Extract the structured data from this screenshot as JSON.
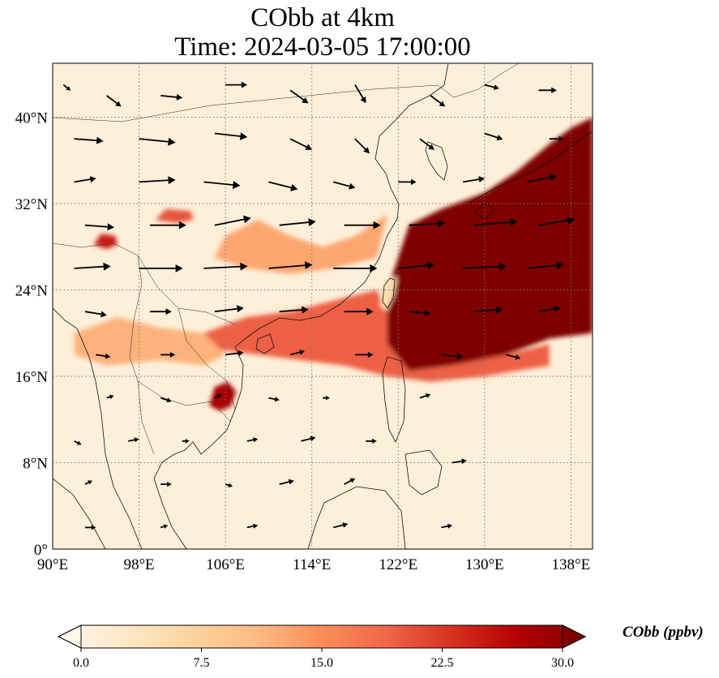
{
  "title": {
    "line1": "CObb at 4km",
    "line2": "Time: 2024-03-05 17:00:00"
  },
  "map": {
    "extent": {
      "lon_min": 90,
      "lon_max": 140,
      "lat_min": 0,
      "lat_max": 45
    },
    "lon_ticks": [
      {
        "value": 90,
        "label": "90°E"
      },
      {
        "value": 98,
        "label": "98°E"
      },
      {
        "value": 106,
        "label": "106°E"
      },
      {
        "value": 114,
        "label": "114°E"
      },
      {
        "value": 122,
        "label": "122°E"
      },
      {
        "value": 130,
        "label": "130°E"
      },
      {
        "value": 138,
        "label": "138°E"
      }
    ],
    "lat_ticks": [
      {
        "value": 0,
        "label": "0°"
      },
      {
        "value": 8,
        "label": "8°N"
      },
      {
        "value": 16,
        "label": "16°N"
      },
      {
        "value": 24,
        "label": "24°N"
      },
      {
        "value": 32,
        "label": "32°N"
      },
      {
        "value": 40,
        "label": "40°N"
      }
    ],
    "gridlines": true
  },
  "colorbar": {
    "label": "CObb (ppbv)",
    "min": 0.0,
    "max": 30.0,
    "ticks": [
      {
        "value": 0,
        "label": "0.0"
      },
      {
        "value": 7.5,
        "label": "7.5"
      },
      {
        "value": 15,
        "label": "15.0"
      },
      {
        "value": 22.5,
        "label": "22.5"
      },
      {
        "value": 30,
        "label": "30.0"
      }
    ],
    "colors": [
      "#fff7ec",
      "#fee8c8",
      "#fdd49e",
      "#fdbb84",
      "#fc8d59",
      "#ef6548",
      "#d7301f",
      "#b30000",
      "#7f0000"
    ],
    "extend": "both"
  },
  "field": {
    "background_value": 2,
    "plumes": [
      {
        "region": "East China Sea to Pacific",
        "value": 30,
        "polygon": [
          [
            121,
            24
          ],
          [
            122,
            27
          ],
          [
            123,
            30
          ],
          [
            126,
            31.5
          ],
          [
            130,
            33
          ],
          [
            133,
            35
          ],
          [
            136,
            37.5
          ],
          [
            138,
            39
          ],
          [
            140,
            40
          ],
          [
            140,
            20
          ],
          [
            136,
            19.5
          ],
          [
            132,
            18
          ],
          [
            127,
            17
          ],
          [
            123,
            16.5
          ],
          [
            121,
            19
          ],
          [
            120.5,
            22
          ]
        ]
      },
      {
        "region": "South China to Philippine Sea band",
        "value": 19,
        "polygon": [
          [
            104,
            20
          ],
          [
            108,
            21.5
          ],
          [
            112,
            22
          ],
          [
            116,
            23
          ],
          [
            120,
            24
          ],
          [
            121,
            22
          ],
          [
            121,
            19
          ],
          [
            123,
            16.5
          ],
          [
            127,
            17
          ],
          [
            132,
            18
          ],
          [
            136,
            19
          ],
          [
            136,
            17
          ],
          [
            130,
            16
          ],
          [
            125,
            15.5
          ],
          [
            121,
            16
          ],
          [
            117,
            17
          ],
          [
            113,
            17.5
          ],
          [
            109,
            18
          ],
          [
            105,
            18.5
          ]
        ]
      },
      {
        "region": "Southern China inland",
        "value": 13,
        "polygon": [
          [
            106,
            29
          ],
          [
            109,
            30.5
          ],
          [
            112,
            29
          ],
          [
            115,
            28
          ],
          [
            118,
            29
          ],
          [
            121,
            31
          ],
          [
            120,
            27
          ],
          [
            116,
            26
          ],
          [
            112,
            25.5
          ],
          [
            108,
            26
          ],
          [
            105,
            27
          ]
        ]
      },
      {
        "region": "Northern Indochina",
        "value": 12,
        "polygon": [
          [
            92,
            20
          ],
          [
            96,
            21.5
          ],
          [
            100,
            20.5
          ],
          [
            104,
            20
          ],
          [
            106,
            18
          ],
          [
            104,
            17
          ],
          [
            100,
            17.5
          ],
          [
            95,
            17
          ],
          [
            92,
            18
          ]
        ]
      },
      {
        "region": "Cambodia hotspot",
        "value": 27,
        "polygon": [
          [
            104.5,
            13.3
          ],
          [
            105,
            15
          ],
          [
            106.2,
            15.5
          ],
          [
            107,
            14.6
          ],
          [
            106.5,
            13.2
          ],
          [
            105.5,
            12.8
          ]
        ]
      },
      {
        "region": "Myanmar hotspot",
        "value": 24,
        "polygon": [
          [
            93.8,
            28.2
          ],
          [
            94.5,
            29.2
          ],
          [
            95.8,
            29
          ],
          [
            96,
            28.2
          ],
          [
            95,
            27.8
          ]
        ]
      },
      {
        "region": "Sichuan hotspot",
        "value": 20,
        "polygon": [
          [
            99.5,
            30.5
          ],
          [
            100.5,
            31.5
          ],
          [
            102.8,
            31.3
          ],
          [
            103,
            30.5
          ],
          [
            101.5,
            30.2
          ]
        ]
      },
      {
        "region": "Taiwan",
        "value": 6,
        "polygon": [
          [
            120.8,
            24.9
          ],
          [
            121.9,
            25.2
          ],
          [
            121.6,
            23.5
          ],
          [
            120.9,
            22
          ],
          [
            120.3,
            22.6
          ]
        ]
      }
    ],
    "winds": [
      {
        "lon": 91,
        "lat": 43,
        "u": 1,
        "v": -0.8
      },
      {
        "lon": 95,
        "lat": 42,
        "u": 2,
        "v": -1.5
      },
      {
        "lon": 100,
        "lat": 42,
        "u": 3,
        "v": -0.3
      },
      {
        "lon": 106,
        "lat": 43,
        "u": 3,
        "v": 0
      },
      {
        "lon": 112,
        "lat": 42.5,
        "u": 2.5,
        "v": -1.8
      },
      {
        "lon": 118,
        "lat": 43,
        "u": 1.5,
        "v": -2.5
      },
      {
        "lon": 125,
        "lat": 42,
        "u": 2,
        "v": -1.5
      },
      {
        "lon": 130,
        "lat": 43,
        "u": 2,
        "v": -0.5
      },
      {
        "lon": 135,
        "lat": 42.5,
        "u": 2.5,
        "v": 0
      },
      {
        "lon": 92,
        "lat": 38,
        "u": 4,
        "v": -0.3
      },
      {
        "lon": 98,
        "lat": 38,
        "u": 5,
        "v": -0.5
      },
      {
        "lon": 105,
        "lat": 38.5,
        "u": 4.5,
        "v": -0.5
      },
      {
        "lon": 112,
        "lat": 38,
        "u": 3,
        "v": -1.5
      },
      {
        "lon": 118,
        "lat": 38,
        "u": 2,
        "v": -2
      },
      {
        "lon": 124,
        "lat": 38,
        "u": 2,
        "v": -1.5
      },
      {
        "lon": 130,
        "lat": 38.5,
        "u": 2.5,
        "v": -0.8
      },
      {
        "lon": 136,
        "lat": 38,
        "u": 2,
        "v": 0
      },
      {
        "lon": 92,
        "lat": 34,
        "u": 3,
        "v": 0.5
      },
      {
        "lon": 98,
        "lat": 34,
        "u": 5,
        "v": 0.3
      },
      {
        "lon": 104,
        "lat": 34,
        "u": 5,
        "v": -0.5
      },
      {
        "lon": 110,
        "lat": 34,
        "u": 4,
        "v": -1
      },
      {
        "lon": 116,
        "lat": 34,
        "u": 3,
        "v": -0.8
      },
      {
        "lon": 122,
        "lat": 34,
        "u": 2.5,
        "v": 0
      },
      {
        "lon": 128,
        "lat": 34,
        "u": 3,
        "v": 0.5
      },
      {
        "lon": 134,
        "lat": 34,
        "u": 4,
        "v": 0.8
      },
      {
        "lon": 93,
        "lat": 30,
        "u": 4,
        "v": -0.3
      },
      {
        "lon": 99,
        "lat": 30,
        "u": 5,
        "v": 0
      },
      {
        "lon": 105,
        "lat": 30,
        "u": 5,
        "v": 1
      },
      {
        "lon": 111,
        "lat": 30,
        "u": 5,
        "v": 0.5
      },
      {
        "lon": 117,
        "lat": 30,
        "u": 5,
        "v": 0
      },
      {
        "lon": 123,
        "lat": 30,
        "u": 5,
        "v": 0.3
      },
      {
        "lon": 129,
        "lat": 30,
        "u": 6,
        "v": 0.5
      },
      {
        "lon": 135,
        "lat": 30,
        "u": 5,
        "v": 0.8
      },
      {
        "lon": 92,
        "lat": 26,
        "u": 5,
        "v": 0.3
      },
      {
        "lon": 98,
        "lat": 26,
        "u": 6,
        "v": 0
      },
      {
        "lon": 104,
        "lat": 26,
        "u": 6,
        "v": 0.3
      },
      {
        "lon": 110,
        "lat": 26,
        "u": 6,
        "v": 0.5
      },
      {
        "lon": 116,
        "lat": 26,
        "u": 6,
        "v": 0
      },
      {
        "lon": 122,
        "lat": 26,
        "u": 5,
        "v": 0.5
      },
      {
        "lon": 128,
        "lat": 26,
        "u": 6,
        "v": 0.3
      },
      {
        "lon": 134,
        "lat": 26,
        "u": 5,
        "v": 0.5
      },
      {
        "lon": 93,
        "lat": 22,
        "u": 3,
        "v": -0.5
      },
      {
        "lon": 99,
        "lat": 22,
        "u": 3,
        "v": 0
      },
      {
        "lon": 105,
        "lat": 22,
        "u": 4,
        "v": 0.5
      },
      {
        "lon": 111,
        "lat": 22,
        "u": 4,
        "v": 0.3
      },
      {
        "lon": 117,
        "lat": 22,
        "u": 4,
        "v": 0
      },
      {
        "lon": 123,
        "lat": 22,
        "u": 3,
        "v": -0.3
      },
      {
        "lon": 129,
        "lat": 22,
        "u": 4,
        "v": 0.3
      },
      {
        "lon": 135,
        "lat": 22,
        "u": 3,
        "v": 0.5
      },
      {
        "lon": 94,
        "lat": 18,
        "u": 2,
        "v": -0.3
      },
      {
        "lon": 100,
        "lat": 18,
        "u": 2,
        "v": 0
      },
      {
        "lon": 106,
        "lat": 18,
        "u": 2.5,
        "v": 0.3
      },
      {
        "lon": 112,
        "lat": 18,
        "u": 2,
        "v": 0.5
      },
      {
        "lon": 118,
        "lat": 18,
        "u": 2.5,
        "v": 0
      },
      {
        "lon": 126,
        "lat": 18,
        "u": 3,
        "v": -0.3
      },
      {
        "lon": 132,
        "lat": 18,
        "u": 2,
        "v": -0.5
      },
      {
        "lon": 95,
        "lat": 14,
        "u": 1,
        "v": 0.3
      },
      {
        "lon": 100,
        "lat": 14,
        "u": 1.5,
        "v": -0.5
      },
      {
        "lon": 105,
        "lat": 14,
        "u": 1,
        "v": 0.5
      },
      {
        "lon": 110,
        "lat": 14,
        "u": 1.5,
        "v": -0.3
      },
      {
        "lon": 115,
        "lat": 14,
        "u": 1,
        "v": 0
      },
      {
        "lon": 124,
        "lat": 14,
        "u": 1.5,
        "v": 0.5
      },
      {
        "lon": 92,
        "lat": 10,
        "u": 1,
        "v": -0.5
      },
      {
        "lon": 97,
        "lat": 10,
        "u": 1.5,
        "v": 0.3
      },
      {
        "lon": 102,
        "lat": 10,
        "u": 1,
        "v": 0
      },
      {
        "lon": 108,
        "lat": 10,
        "u": 1.5,
        "v": 0.3
      },
      {
        "lon": 113,
        "lat": 10,
        "u": 2,
        "v": 0.5
      },
      {
        "lon": 119,
        "lat": 10,
        "u": 1.5,
        "v": 0
      },
      {
        "lon": 127,
        "lat": 8,
        "u": 2,
        "v": 0.3
      },
      {
        "lon": 93,
        "lat": 6,
        "u": 1,
        "v": 0.5
      },
      {
        "lon": 100,
        "lat": 6,
        "u": 1.5,
        "v": 0
      },
      {
        "lon": 106,
        "lat": 6,
        "u": 1,
        "v": -0.3
      },
      {
        "lon": 111,
        "lat": 6,
        "u": 2,
        "v": 0.5
      },
      {
        "lon": 117,
        "lat": 6,
        "u": 1.5,
        "v": 0.8
      },
      {
        "lon": 93,
        "lat": 2,
        "u": 1.5,
        "v": 0
      },
      {
        "lon": 100,
        "lat": 2,
        "u": 1,
        "v": 0.3
      },
      {
        "lon": 108,
        "lat": 2,
        "u": 1.5,
        "v": 0.3
      },
      {
        "lon": 116,
        "lat": 2,
        "u": 2,
        "v": 0.5
      },
      {
        "lon": 126,
        "lat": 2,
        "u": 1.5,
        "v": 0.3
      }
    ]
  }
}
